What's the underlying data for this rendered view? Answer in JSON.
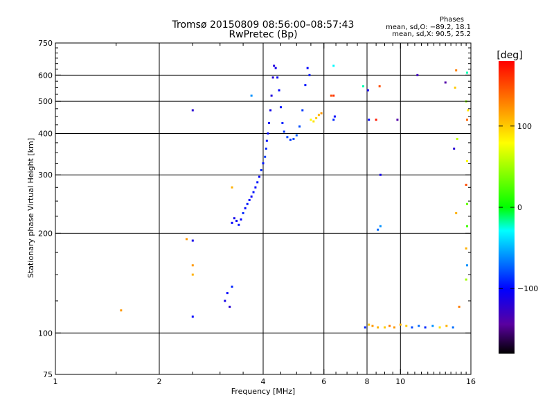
{
  "chart_data": {
    "type": "scatter",
    "title": "Tromsø 20150809 08:56:00–08:57:43",
    "subtitle": "RwPretec (Bp)",
    "xlabel": "Frequency [MHz]",
    "ylabel": "Stationary phase Virtual Height [km]",
    "x_scale": "log",
    "y_scale": "log",
    "xlim": [
      1,
      16
    ],
    "ylim": [
      75,
      750
    ],
    "x_ticks": [
      1,
      2,
      4,
      6,
      8,
      10,
      16
    ],
    "x_tick_labels": [
      "1",
      "2",
      "4",
      "6",
      "8",
      "10",
      "16"
    ],
    "y_ticks": [
      75,
      100,
      200,
      300,
      400,
      500,
      600,
      750
    ],
    "y_tick_labels": [
      "75",
      "100",
      "200",
      "300",
      "400",
      "500",
      "600",
      "750"
    ],
    "grid": true,
    "stats": {
      "heading": "Phases",
      "line1": "mean, sd,O: −89.2, 18.1",
      "line2": "mean, sd,X:  90.5, 25.2"
    },
    "colorbar": {
      "label": "[deg]",
      "range": [
        -180,
        180
      ],
      "ticks": [
        100,
        0,
        -100
      ],
      "tick_labels": [
        "100",
        "0",
        "−100"
      ],
      "colors": {
        "top": "#ff0000",
        "yellow": "#ffff00",
        "green": "#00ff00",
        "cyan": "#00ffff",
        "blue": "#0000ff",
        "violet": "#5a00a0",
        "bottom": "#000000"
      }
    },
    "series": [
      {
        "values": [
          [
            3.25,
            215,
            -100
          ],
          [
            3.3,
            222,
            -110
          ],
          [
            3.35,
            218,
            -105
          ],
          [
            3.4,
            212,
            -95
          ],
          [
            3.45,
            220,
            -100
          ],
          [
            3.5,
            230,
            -90
          ],
          [
            3.55,
            238,
            -100
          ],
          [
            3.6,
            245,
            -95
          ],
          [
            3.65,
            252,
            -100
          ],
          [
            3.7,
            258,
            -105
          ],
          [
            3.75,
            266,
            -95
          ],
          [
            3.8,
            275,
            -100
          ],
          [
            3.85,
            285,
            -95
          ],
          [
            3.9,
            296,
            -100
          ],
          [
            3.95,
            310,
            -90
          ],
          [
            4.0,
            325,
            -95
          ],
          [
            4.05,
            340,
            -85
          ],
          [
            4.08,
            360,
            -90
          ],
          [
            4.1,
            380,
            -95
          ],
          [
            4.13,
            400,
            -100
          ],
          [
            4.16,
            430,
            -105
          ],
          [
            4.2,
            470,
            -110
          ],
          [
            4.23,
            520,
            -115
          ],
          [
            4.27,
            590,
            -120
          ],
          [
            4.3,
            640,
            -115
          ],
          [
            4.35,
            630,
            -110
          ],
          [
            4.4,
            590,
            -105
          ],
          [
            4.45,
            540,
            -100
          ],
          [
            4.5,
            480,
            -95
          ],
          [
            4.55,
            430,
            -90
          ],
          [
            4.6,
            405,
            -85
          ],
          [
            4.7,
            390,
            -80
          ],
          [
            4.8,
            383,
            -85
          ],
          [
            4.9,
            385,
            -80
          ],
          [
            5.0,
            395,
            -75
          ],
          [
            5.1,
            420,
            -80
          ],
          [
            5.2,
            470,
            -85
          ],
          [
            5.3,
            560,
            -95
          ],
          [
            5.38,
            630,
            -100
          ],
          [
            5.45,
            600,
            -95
          ]
        ],
        "note": "columns: frequency MHz, virtual height km, phase deg"
      },
      {
        "values": [
          [
            5.5,
            440,
            80
          ],
          [
            5.6,
            435,
            90
          ],
          [
            5.7,
            445,
            100
          ],
          [
            5.8,
            455,
            110
          ],
          [
            5.9,
            460,
            120
          ],
          [
            6.3,
            520,
            150
          ],
          [
            6.4,
            520,
            160
          ]
        ]
      },
      {
        "values": [
          [
            7.9,
            104,
            -90
          ],
          [
            8.1,
            106,
            100
          ],
          [
            8.3,
            105,
            120
          ],
          [
            8.6,
            104,
            110
          ],
          [
            9.0,
            104,
            100
          ],
          [
            9.3,
            105,
            130
          ],
          [
            9.6,
            104,
            120
          ],
          [
            10.0,
            106,
            110
          ],
          [
            10.4,
            105,
            100
          ],
          [
            10.8,
            104,
            -80
          ],
          [
            11.3,
            105,
            -70
          ],
          [
            11.8,
            104,
            -90
          ],
          [
            12.4,
            105,
            -60
          ],
          [
            13.0,
            104,
            90
          ],
          [
            13.6,
            105,
            110
          ],
          [
            14.2,
            104,
            -70
          ]
        ]
      },
      {
        "values": [
          [
            3.1,
            125,
            -110
          ],
          [
            3.15,
            132,
            -100
          ],
          [
            3.2,
            120,
            -120
          ],
          [
            3.25,
            138,
            -90
          ],
          [
            2.5,
            470,
            -120
          ],
          [
            2.5,
            190,
            -110
          ],
          [
            2.5,
            112,
            -100
          ],
          [
            2.5,
            160,
            120
          ],
          [
            2.5,
            150,
            110
          ],
          [
            2.4,
            192,
            120
          ],
          [
            1.55,
            117,
            120
          ],
          [
            3.25,
            275,
            110
          ],
          [
            3.7,
            520,
            -60
          ],
          [
            6.4,
            640,
            -30
          ],
          [
            6.4,
            440,
            -90
          ],
          [
            6.45,
            450,
            -100
          ],
          [
            7.8,
            555,
            -20
          ],
          [
            8.05,
            540,
            -110
          ],
          [
            8.1,
            440,
            -100
          ],
          [
            8.5,
            440,
            170
          ],
          [
            8.7,
            555,
            150
          ],
          [
            8.75,
            300,
            -110
          ],
          [
            8.6,
            205,
            -70
          ],
          [
            8.75,
            210,
            -60
          ],
          [
            9.8,
            440,
            -140
          ],
          [
            11.2,
            600,
            -130
          ],
          [
            13.5,
            570,
            -140
          ],
          [
            14.5,
            620,
            130
          ],
          [
            14.4,
            550,
            100
          ],
          [
            14.6,
            385,
            60
          ],
          [
            14.5,
            230,
            110
          ],
          [
            14.3,
            360,
            -120
          ],
          [
            14.8,
            120,
            130
          ],
          [
            15.6,
            610,
            -20
          ],
          [
            15.5,
            500,
            40
          ],
          [
            15.6,
            440,
            140
          ],
          [
            15.6,
            330,
            80
          ],
          [
            15.5,
            280,
            150
          ],
          [
            15.6,
            210,
            20
          ],
          [
            15.5,
            180,
            110
          ],
          [
            15.6,
            160,
            -60
          ],
          [
            15.5,
            145,
            50
          ],
          [
            15.7,
            470,
            90
          ],
          [
            15.6,
            245,
            30
          ]
        ]
      }
    ]
  }
}
